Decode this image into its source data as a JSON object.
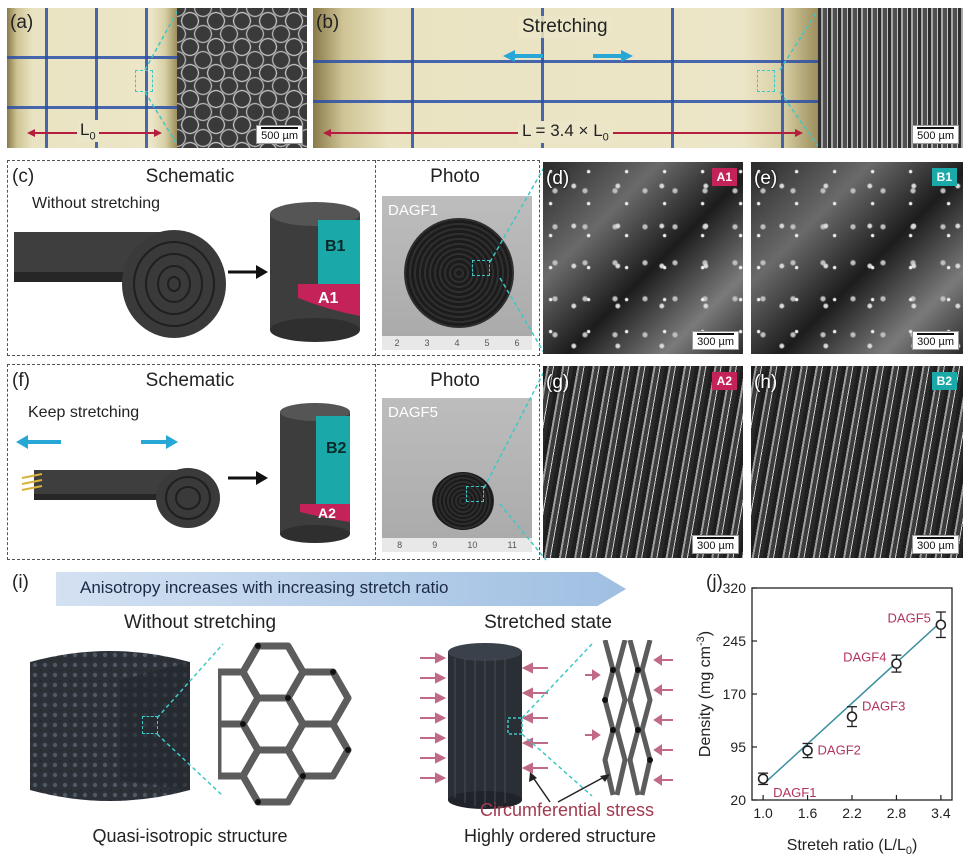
{
  "panels": {
    "a": {
      "label": "(a)",
      "dimension": "L",
      "dimension_sub": "0",
      "scale": "500 µm"
    },
    "b": {
      "label": "(b)",
      "stretching": "Stretching",
      "dimension": "L = 3.4 × L",
      "dimension_sub": "0",
      "scale": "500 µm"
    },
    "c": {
      "label": "(c)",
      "schematic": "Schematic",
      "photo": "Photo",
      "note": "Without stretching",
      "sample": "DAGF1",
      "tag1": "B1",
      "tag2": "A1",
      "ruler": [
        "2",
        "3",
        "4",
        "5",
        "6"
      ]
    },
    "d": {
      "label": "(d)",
      "badge": "A1",
      "scale": "300 µm"
    },
    "e": {
      "label": "(e)",
      "badge": "B1",
      "scale": "300 µm"
    },
    "f": {
      "label": "(f)",
      "schematic": "Schematic",
      "photo": "Photo",
      "note": "Keep stretching",
      "sample": "DAGF5",
      "tag1": "B2",
      "tag2": "A2",
      "ruler": [
        "8",
        "9",
        "10",
        "11"
      ]
    },
    "g": {
      "label": "(g)",
      "badge": "A2",
      "scale": "300 µm"
    },
    "h": {
      "label": "(h)",
      "badge": "B2",
      "scale": "300 µm"
    },
    "i": {
      "label": "(i)",
      "banner": "Anisotropy increases with increasing stretch ratio",
      "left_title": "Without stretching",
      "right_title": "Stretched state",
      "stress": "Circumferential stress",
      "left_caption": "Quasi-isotropic structure",
      "right_caption": "Highly ordered structure"
    },
    "j": {
      "label": "(j)"
    }
  },
  "colors": {
    "red": "#c4235a",
    "teal": "#1aa8a8",
    "cyan": "#3fc7c7",
    "line": "#3b8fa0",
    "point_label": "#b2335f"
  },
  "chart_data": {
    "type": "scatter",
    "xlabel": "Streteh ratio (L/L",
    "xlabel_sub": "0",
    "xlabel_end": ")",
    "ylabel": "Density (mg cm",
    "ylabel_sup": "-3",
    "ylabel_end": ")",
    "xlim": [
      0.85,
      3.55
    ],
    "ylim": [
      20,
      320
    ],
    "xticks": [
      "1.0",
      "1.6",
      "2.2",
      "2.8",
      "3.4"
    ],
    "yticks": [
      "20",
      "95",
      "170",
      "245",
      "320"
    ],
    "points": [
      {
        "name": "DAGF1",
        "x": 1.0,
        "y": 50,
        "err": 8
      },
      {
        "name": "DAGF2",
        "x": 1.6,
        "y": 90,
        "err": 10
      },
      {
        "name": "DAGF3",
        "x": 2.2,
        "y": 138,
        "err": 14
      },
      {
        "name": "DAGF4",
        "x": 2.8,
        "y": 213,
        "err": 12
      },
      {
        "name": "DAGF5",
        "x": 3.4,
        "y": 268,
        "err": 18
      }
    ],
    "fit": {
      "x0": 1.0,
      "y0": 42,
      "x1": 3.4,
      "y1": 272
    }
  }
}
